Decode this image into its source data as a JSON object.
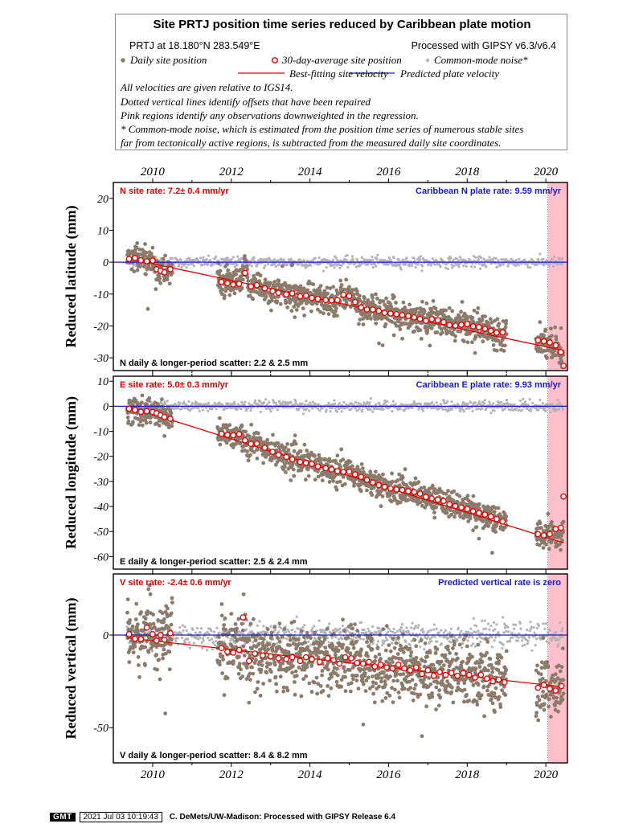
{
  "legend": {
    "title": "Site PRTJ position time series reduced by Caribbean plate motion",
    "location": "PRTJ at 18.180°N 283.549°E",
    "processing": "Processed with GIPSY v6.3/v6.4",
    "daily_label": "Daily site position",
    "avg_label": "30-day-average site position",
    "cm_label": "Common-mode noise*",
    "best_label": "Best-fitting site velocity",
    "pred_label": "Predicted plate velocity",
    "notes": [
      "All velocities are given relative to IGS14.",
      "Dotted vertical lines identify offsets that have been repaired",
      "Pink regions identify any observations downweighted in the regression.",
      "* Common-mode noise, which is estimated from the position time series of numerous stable sites",
      "far from tectonically active regions, is subtracted from the measured daily site coordinates."
    ]
  },
  "colors": {
    "daily": "#8c7b6b",
    "avg_edge": "#e00000",
    "common_mode": "#b4b4b4",
    "best_fit": "#e00000",
    "predicted": "#1a1acc",
    "downweight": "#ffc0cb",
    "rate_text_site": "#e00000",
    "rate_text_plate": "#1a1acc"
  },
  "chart_data": [
    {
      "type": "scatter",
      "component": "N",
      "ylabel": "Reduced latitude (mm)",
      "xlim": [
        2009.0,
        2020.55
      ],
      "ylim": [
        -34,
        25
      ],
      "yticks": [
        20,
        10,
        0,
        -10,
        -20,
        -30
      ],
      "xticks": [
        2010,
        2012,
        2014,
        2016,
        2018,
        2020
      ],
      "site_rate": "N site rate:   7.2± 0.4 mm/yr",
      "plate_rate": "Caribbean N plate rate: 9.59 mm/yr",
      "scatter_text": "N daily & longer-period scatter:   2.2 &   2.5 mm",
      "best_fit": [
        [
          2009.35,
          1.2
        ],
        [
          2020.45,
          -27.7
        ]
      ],
      "predicted_value": 0,
      "noise": 2.2,
      "cm_noise": 0.8,
      "downweight": [
        2020.05,
        2020.55
      ],
      "offsets": [
        2020.05
      ],
      "segments": [
        [
          2009.35,
          2010.5
        ],
        [
          2011.65,
          2019.0
        ],
        [
          2019.75,
          2020.45
        ]
      ],
      "steps": [
        [
          2012.3,
          2.6
        ],
        [
          2014.8,
          3.5
        ]
      ],
      "averages": [
        [
          2009.4,
          1.0
        ],
        [
          2009.55,
          1.3
        ],
        [
          2009.7,
          0.6
        ],
        [
          2009.85,
          0.3
        ],
        [
          2010.0,
          0.5
        ],
        [
          2010.1,
          -2.2
        ],
        [
          2010.2,
          -2.7
        ],
        [
          2010.3,
          -3.2
        ],
        [
          2010.45,
          -2.2
        ],
        [
          2011.75,
          -6.2
        ],
        [
          2011.9,
          -6.6
        ],
        [
          2012.05,
          -7.0
        ],
        [
          2012.2,
          -6.8
        ],
        [
          2012.35,
          -3.4
        ],
        [
          2012.5,
          -7.6
        ],
        [
          2012.65,
          -7.2
        ],
        [
          2012.85,
          -8.2
        ],
        [
          2013.05,
          -9.1
        ],
        [
          2013.2,
          -9.6
        ],
        [
          2013.4,
          -10.1
        ],
        [
          2013.55,
          -9.8
        ],
        [
          2013.75,
          -10.7
        ],
        [
          2013.9,
          -10.5
        ],
        [
          2014.05,
          -11.2
        ],
        [
          2014.2,
          -11.5
        ],
        [
          2014.4,
          -11.9
        ],
        [
          2014.55,
          -12.0
        ],
        [
          2014.7,
          -11.9
        ],
        [
          2014.85,
          -10.2
        ],
        [
          2015.0,
          -10.6
        ],
        [
          2015.15,
          -12.5
        ],
        [
          2015.3,
          -14.2
        ],
        [
          2015.45,
          -14.8
        ],
        [
          2015.6,
          -14.9
        ],
        [
          2015.75,
          -15.3
        ],
        [
          2015.9,
          -15.9
        ],
        [
          2016.05,
          -16.1
        ],
        [
          2016.2,
          -16.3
        ],
        [
          2016.35,
          -16.6
        ],
        [
          2016.5,
          -16.9
        ],
        [
          2016.65,
          -17.3
        ],
        [
          2016.8,
          -17.8
        ],
        [
          2016.95,
          -18.4
        ],
        [
          2017.1,
          -17.9
        ],
        [
          2017.25,
          -18.2
        ],
        [
          2017.4,
          -18.8
        ],
        [
          2017.55,
          -19.7
        ],
        [
          2017.7,
          -19.9
        ],
        [
          2017.85,
          -19.6
        ],
        [
          2018.0,
          -19.4
        ],
        [
          2018.15,
          -20.1
        ],
        [
          2018.3,
          -20.4
        ],
        [
          2018.45,
          -20.9
        ],
        [
          2018.6,
          -21.5
        ],
        [
          2018.75,
          -22.1
        ],
        [
          2018.9,
          -22.0
        ],
        [
          2019.8,
          -24.5
        ],
        [
          2019.95,
          -24.8
        ],
        [
          2020.1,
          -25.2
        ],
        [
          2020.25,
          -26.1
        ],
        [
          2020.38,
          -28.2
        ],
        [
          2020.45,
          -32.5
        ]
      ]
    },
    {
      "type": "scatter",
      "component": "E",
      "ylabel": "Reduced longitude (mm)",
      "xlim": [
        2009.0,
        2020.55
      ],
      "ylim": [
        -65,
        12
      ],
      "yticks": [
        10,
        0,
        -10,
        -20,
        -30,
        -40,
        -50,
        -60
      ],
      "xticks": [
        2010,
        2012,
        2014,
        2016,
        2018,
        2020
      ],
      "site_rate": "E site rate:   5.0± 0.3 mm/yr",
      "plate_rate": "Caribbean E plate rate: 9.93 mm/yr",
      "scatter_text": "E daily & longer-period scatter:   2.5 &   2.4 mm",
      "best_fit": [
        [
          2009.35,
          0.0
        ],
        [
          2020.45,
          -54.5
        ]
      ],
      "predicted_value": 0,
      "noise": 2.5,
      "cm_noise": 1.0,
      "downweight": [
        2020.05,
        2020.55
      ],
      "offsets": [
        2020.05
      ],
      "segments": [
        [
          2009.35,
          2010.5
        ],
        [
          2011.65,
          2019.0
        ],
        [
          2019.75,
          2020.45
        ]
      ],
      "steps": [],
      "averages": [
        [
          2009.4,
          -1.0
        ],
        [
          2009.55,
          -1.5
        ],
        [
          2009.7,
          -2.2
        ],
        [
          2009.85,
          -2.0
        ],
        [
          2010.0,
          -2.3
        ],
        [
          2010.1,
          -2.8
        ],
        [
          2010.2,
          -3.6
        ],
        [
          2010.3,
          -4.3
        ],
        [
          2010.45,
          -5.0
        ],
        [
          2011.75,
          -11.0
        ],
        [
          2011.9,
          -11.4
        ],
        [
          2012.05,
          -11.6
        ],
        [
          2012.2,
          -11.1
        ],
        [
          2012.35,
          -13.6
        ],
        [
          2012.5,
          -15.0
        ],
        [
          2012.65,
          -14.9
        ],
        [
          2012.85,
          -16.6
        ],
        [
          2013.05,
          -18.2
        ],
        [
          2013.2,
          -19.4
        ],
        [
          2013.4,
          -20.2
        ],
        [
          2013.55,
          -21.2
        ],
        [
          2013.75,
          -22.2
        ],
        [
          2013.9,
          -22.6
        ],
        [
          2014.05,
          -23.0
        ],
        [
          2014.2,
          -24.0
        ],
        [
          2014.4,
          -24.7
        ],
        [
          2014.55,
          -25.2
        ],
        [
          2014.7,
          -25.9
        ],
        [
          2014.85,
          -26.2
        ],
        [
          2015.0,
          -26.1
        ],
        [
          2015.15,
          -27.2
        ],
        [
          2015.3,
          -28.2
        ],
        [
          2015.45,
          -29.4
        ],
        [
          2015.6,
          -30.4
        ],
        [
          2015.75,
          -31.5
        ],
        [
          2015.9,
          -32.1
        ],
        [
          2016.05,
          -32.8
        ],
        [
          2016.2,
          -33.2
        ],
        [
          2016.35,
          -33.4
        ],
        [
          2016.5,
          -33.9
        ],
        [
          2016.65,
          -34.2
        ],
        [
          2016.8,
          -34.9
        ],
        [
          2016.95,
          -36.2
        ],
        [
          2017.1,
          -36.8
        ],
        [
          2017.25,
          -37.3
        ],
        [
          2017.4,
          -37.8
        ],
        [
          2017.55,
          -39.1
        ],
        [
          2017.7,
          -39.8
        ],
        [
          2017.85,
          -40.4
        ],
        [
          2018.0,
          -41.0
        ],
        [
          2018.15,
          -41.9
        ],
        [
          2018.3,
          -42.6
        ],
        [
          2018.45,
          -43.2
        ],
        [
          2018.6,
          -44.0
        ],
        [
          2018.75,
          -45.0
        ],
        [
          2018.9,
          -46.0
        ],
        [
          2019.8,
          -51.0
        ],
        [
          2019.95,
          -51.5
        ],
        [
          2020.1,
          -51.0
        ],
        [
          2020.25,
          -49.0
        ],
        [
          2020.38,
          -48.5
        ],
        [
          2020.45,
          -36.0
        ]
      ]
    },
    {
      "type": "scatter",
      "component": "V",
      "ylabel": "Reduced vertical (mm)",
      "xlim": [
        2009.0,
        2020.55
      ],
      "ylim": [
        -69,
        33
      ],
      "yticks": [
        0,
        -50
      ],
      "xticks": [
        2010,
        2012,
        2014,
        2016,
        2018,
        2020
      ],
      "site_rate": "V site rate:  -2.4± 0.6 mm/yr",
      "plate_rate": "Predicted vertical rate is zero",
      "scatter_text": "V daily & longer-period scatter:   8.4 &   8.2 mm",
      "best_fit": [
        [
          2009.35,
          -1.5
        ],
        [
          2020.45,
          -28.0
        ]
      ],
      "predicted_value": 0,
      "noise": 8.4,
      "cm_noise": 3.0,
      "downweight": [
        2020.05,
        2020.55
      ],
      "offsets": [
        2020.05
      ],
      "segments": [
        [
          2009.35,
          2010.5
        ],
        [
          2011.65,
          2019.0
        ],
        [
          2019.75,
          2020.45
        ]
      ],
      "steps": [],
      "averages": [
        [
          2009.4,
          0.5
        ],
        [
          2009.55,
          -2.0
        ],
        [
          2009.7,
          -2.2
        ],
        [
          2009.85,
          4.0
        ],
        [
          2010.0,
          0.5
        ],
        [
          2010.1,
          -3.0
        ],
        [
          2010.2,
          0.0
        ],
        [
          2010.3,
          -2.5
        ],
        [
          2010.45,
          1.0
        ],
        [
          2011.75,
          -7.0
        ],
        [
          2011.9,
          -9.0
        ],
        [
          2012.05,
          -9.5
        ],
        [
          2012.2,
          -8.0
        ],
        [
          2012.3,
          9.5
        ],
        [
          2012.45,
          -14.0
        ],
        [
          2012.6,
          -10.0
        ],
        [
          2012.8,
          -11.0
        ],
        [
          2013.0,
          -11.5
        ],
        [
          2013.2,
          -12.5
        ],
        [
          2013.4,
          -13.0
        ],
        [
          2013.55,
          -12.0
        ],
        [
          2013.75,
          -14.0
        ],
        [
          2013.9,
          -12.0
        ],
        [
          2014.05,
          -13.0
        ],
        [
          2014.25,
          -14.5
        ],
        [
          2014.45,
          -12.5
        ],
        [
          2014.6,
          -13.5
        ],
        [
          2014.75,
          -15.5
        ],
        [
          2014.9,
          -12.0
        ],
        [
          2015.05,
          -12.5
        ],
        [
          2015.2,
          -15.0
        ],
        [
          2015.35,
          -15.5
        ],
        [
          2015.5,
          -14.5
        ],
        [
          2015.65,
          -17.0
        ],
        [
          2015.8,
          -16.0
        ],
        [
          2015.95,
          -17.5
        ],
        [
          2016.1,
          -18.0
        ],
        [
          2016.25,
          -16.0
        ],
        [
          2016.4,
          -18.0
        ],
        [
          2016.55,
          -19.0
        ],
        [
          2016.7,
          -17.5
        ],
        [
          2016.85,
          -21.0
        ],
        [
          2017.0,
          -19.0
        ],
        [
          2017.15,
          -22.0
        ],
        [
          2017.3,
          -20.0
        ],
        [
          2017.45,
          -21.5
        ],
        [
          2017.6,
          -20.5
        ],
        [
          2017.75,
          -22.0
        ],
        [
          2017.9,
          -20.5
        ],
        [
          2018.05,
          -21.5
        ],
        [
          2018.2,
          -23.0
        ],
        [
          2018.35,
          -21.5
        ],
        [
          2018.5,
          -23.5
        ],
        [
          2018.65,
          -25.0
        ],
        [
          2018.8,
          -24.0
        ],
        [
          2018.95,
          -25.5
        ],
        [
          2019.8,
          -28.5
        ],
        [
          2019.95,
          -27.0
        ],
        [
          2020.1,
          -29.0
        ],
        [
          2020.25,
          -30.0
        ],
        [
          2020.4,
          -27.5
        ]
      ]
    }
  ],
  "footer": {
    "logo": "GMT",
    "timestamp": "2021 Jul 03 10:19:43",
    "credit": "C. DeMets/UW-Madison: Processed with GIPSY Release 6.4"
  }
}
